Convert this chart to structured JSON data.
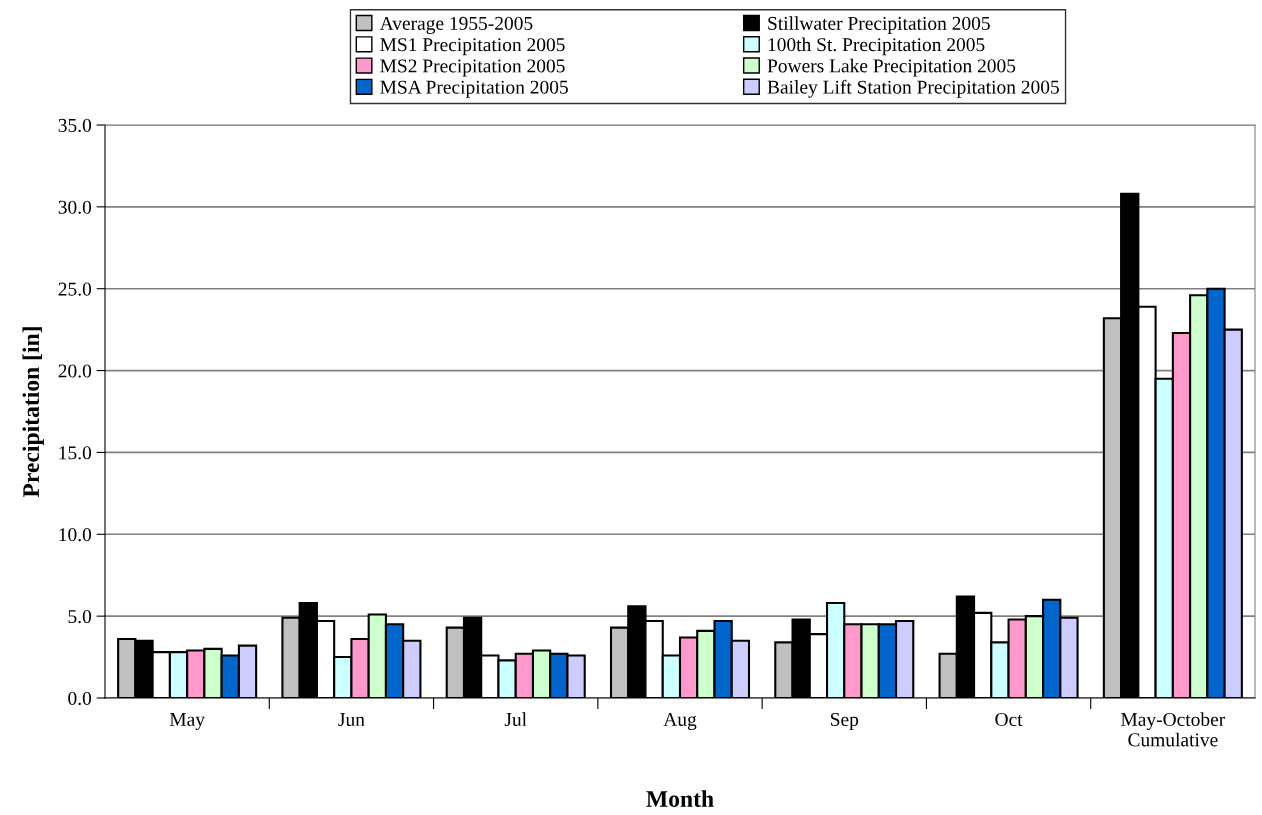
{
  "chart_data": {
    "type": "bar",
    "xlabel": "Month",
    "ylabel": "Precipitation [in]",
    "categories": [
      "May",
      "Jun",
      "Jul",
      "Aug",
      "Sep",
      "Oct",
      "May-October\nCumulative"
    ],
    "series": [
      {
        "name": "Average 1955-2005",
        "color": "#c0c0c0",
        "values": [
          3.6,
          4.9,
          4.3,
          4.3,
          3.4,
          2.7,
          23.2
        ]
      },
      {
        "name": "Stillwater Precipitation 2005",
        "color": "#000000",
        "values": [
          3.5,
          5.8,
          4.9,
          5.6,
          4.8,
          6.2,
          30.8
        ]
      },
      {
        "name": "MS1 Precipitation 2005",
        "color": "#ffffff",
        "values": [
          2.8,
          4.7,
          2.6,
          4.7,
          3.9,
          5.2,
          23.9
        ]
      },
      {
        "name": "100th St. Precipitation 2005",
        "color": "#ccffff",
        "values": [
          2.8,
          2.5,
          2.3,
          2.6,
          5.8,
          3.4,
          19.5
        ]
      },
      {
        "name": "MS2 Precipitation 2005",
        "color": "#ff99cc",
        "values": [
          2.9,
          3.6,
          2.7,
          3.7,
          4.5,
          4.8,
          22.3
        ]
      },
      {
        "name": "Powers Lake Precipitation 2005",
        "color": "#ccffcc",
        "values": [
          3.0,
          5.1,
          2.9,
          4.1,
          4.5,
          5.0,
          24.6
        ]
      },
      {
        "name": "MSA Precipitation 2005",
        "color": "#0066cc",
        "values": [
          2.6,
          4.5,
          2.7,
          4.7,
          4.5,
          6.0,
          25.0
        ]
      },
      {
        "name": "Bailey Lift Station Precipitation 2005",
        "color": "#ccccff",
        "values": [
          3.2,
          3.5,
          2.6,
          3.5,
          4.7,
          4.9,
          22.5
        ]
      }
    ],
    "ylim": [
      0,
      35
    ],
    "yticks": [
      {
        "value": 0,
        "label": "0.0"
      },
      {
        "value": 5,
        "label": "5.0"
      },
      {
        "value": 10,
        "label": "10.0"
      },
      {
        "value": 15,
        "label": "15.0"
      },
      {
        "value": 20,
        "label": "20.0"
      },
      {
        "value": 25,
        "label": "25.0"
      },
      {
        "value": 30,
        "label": "30.0"
      },
      {
        "value": 35,
        "label": "35.0"
      }
    ],
    "grid": "y",
    "legend": "top"
  }
}
